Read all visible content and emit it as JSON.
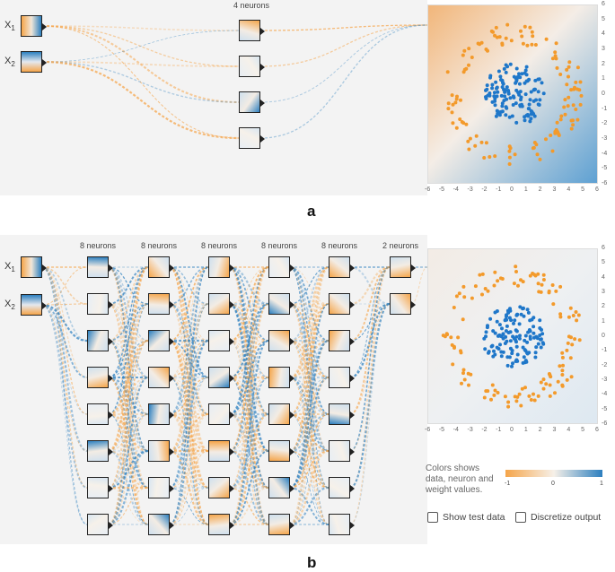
{
  "colors": {
    "orange": "#f5a54a",
    "blue": "#2c7fbf",
    "neutral": "#f1eee9",
    "dot_orange": "#f39a2b",
    "dot_blue": "#1f77c9"
  },
  "panel_a": {
    "caption": "a",
    "inputs": [
      {
        "name": "X",
        "sub": "1"
      },
      {
        "name": "X",
        "sub": "2"
      }
    ],
    "layers": [
      {
        "label": "4 neurons",
        "count": 4
      }
    ],
    "axis_ticks_x": [
      "-6",
      "-5",
      "-4",
      "-3",
      "-2",
      "-1",
      "0",
      "1",
      "2",
      "3",
      "4",
      "5",
      "6"
    ],
    "axis_ticks_y": [
      "6",
      "5",
      "4",
      "3",
      "2",
      "1",
      "0",
      "-1",
      "-2",
      "-3",
      "-4",
      "-5",
      "-6"
    ]
  },
  "panel_b": {
    "caption": "b",
    "inputs": [
      {
        "name": "X",
        "sub": "1"
      },
      {
        "name": "X",
        "sub": "2"
      }
    ],
    "layers": [
      {
        "label": "8 neurons",
        "count": 8
      },
      {
        "label": "8 neurons",
        "count": 8
      },
      {
        "label": "8 neurons",
        "count": 8
      },
      {
        "label": "8 neurons",
        "count": 8
      },
      {
        "label": "8 neurons",
        "count": 8
      },
      {
        "label": "2 neurons",
        "count": 2
      }
    ],
    "axis_ticks_x": [
      "-6",
      "-5",
      "-4",
      "-3",
      "-2",
      "-1",
      "0",
      "1",
      "2",
      "3",
      "4",
      "5",
      "6"
    ],
    "axis_ticks_y": [
      "6",
      "5",
      "4",
      "3",
      "2",
      "1",
      "0",
      "-1",
      "-2",
      "-3",
      "-4",
      "-5",
      "-6"
    ],
    "legend": {
      "text_lines": [
        "Colors shows",
        "data, neuron and",
        "weight values."
      ],
      "min": "-1",
      "mid": "0",
      "max": "1"
    },
    "show_test_data_label": "Show test data",
    "discretize_output_label": "Discretize output"
  }
}
